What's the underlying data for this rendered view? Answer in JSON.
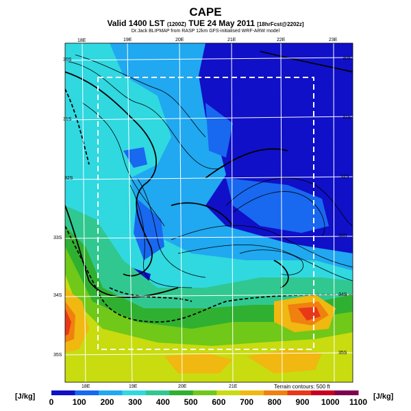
{
  "header": {
    "title": "CAPE",
    "subtitle_main": "Valid 1400 LST",
    "subtitle_utc": "(1200Z)",
    "subtitle_date": "TUE 24 May 2011",
    "subtitle_fcst": "[18hrFcst@2202z]",
    "credit": "Dr.Jack BLIPMAP from RASP 12km GFS-initialised WRF-ARW model"
  },
  "map": {
    "lon_labels_top": [
      "18E",
      "19E",
      "20E",
      "21E",
      "22E",
      "23E"
    ],
    "lon_labels_bottom": [
      "18E",
      "19E",
      "20E",
      "21E"
    ],
    "lat_labels_left": [
      "30S",
      "31S",
      "32S",
      "33S",
      "34S",
      "35S"
    ],
    "lat_labels_right": [
      "30S",
      "31S",
      "32S",
      "33S",
      "34S",
      "35S"
    ],
    "terrain_note": "Terrain contours: 500 ft"
  },
  "colorbar": {
    "unit_left": "[J/kg]",
    "unit_right": "[J/kg]",
    "ticks": [
      "0",
      "100",
      "200",
      "300",
      "400",
      "500",
      "600",
      "700",
      "800",
      "900",
      "1000",
      "1100"
    ],
    "colors": [
      "#1010c8",
      "#1868f0",
      "#20a8f0",
      "#30d8e0",
      "#30c890",
      "#30b030",
      "#70c818",
      "#c8dc10",
      "#f0b810",
      "#f08010",
      "#e83818",
      "#c80020",
      "#800050"
    ]
  }
}
